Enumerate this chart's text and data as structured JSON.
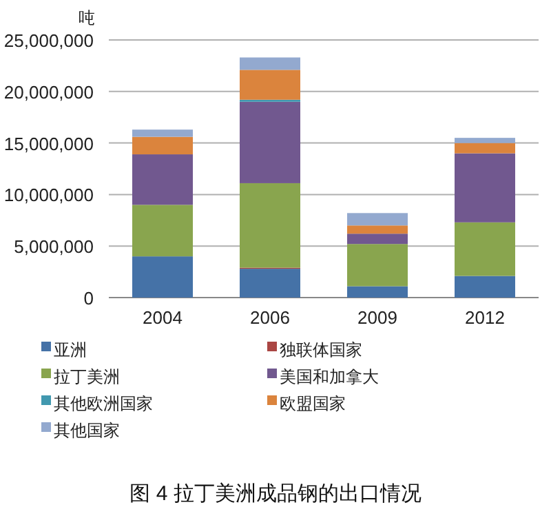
{
  "chart_data": {
    "type": "bar",
    "title": "图 4  拉丁美洲成品钢的出口情况",
    "ylabel": "吨",
    "stacked": true,
    "grid": "y",
    "legend": "bottom",
    "categories": [
      "2004",
      "2006",
      "2009",
      "2012"
    ],
    "ylim": [
      0,
      25000000
    ],
    "yticks": [
      {
        "value": 0,
        "label": "0"
      },
      {
        "value": 5000000,
        "label": "5,000,000"
      },
      {
        "value": 10000000,
        "label": "10,000,000"
      },
      {
        "value": 15000000,
        "label": "15,000,000"
      },
      {
        "value": 20000000,
        "label": "20,000,000"
      },
      {
        "value": 25000000,
        "label": "25,000,000"
      }
    ],
    "series": [
      {
        "name": "亚洲",
        "color": "#4572a7",
        "values": [
          4000000,
          2800000,
          1100000,
          2100000
        ]
      },
      {
        "name": "独联体国家",
        "color": "#aa4643",
        "values": [
          0,
          100000,
          0,
          0
        ]
      },
      {
        "name": "拉丁美洲",
        "color": "#89a54e",
        "values": [
          5000000,
          8200000,
          4100000,
          5200000
        ]
      },
      {
        "name": "美国和加拿大",
        "color": "#71588f",
        "values": [
          4900000,
          7900000,
          1000000,
          6700000
        ]
      },
      {
        "name": "其他欧洲国家",
        "color": "#4198af",
        "values": [
          0,
          200000,
          0,
          0
        ]
      },
      {
        "name": "欧盟国家",
        "color": "#db843d",
        "values": [
          1700000,
          2900000,
          800000,
          1000000
        ]
      },
      {
        "name": "其他国家",
        "color": "#93a9cf",
        "values": [
          700000,
          1200000,
          1200000,
          500000
        ]
      }
    ]
  }
}
